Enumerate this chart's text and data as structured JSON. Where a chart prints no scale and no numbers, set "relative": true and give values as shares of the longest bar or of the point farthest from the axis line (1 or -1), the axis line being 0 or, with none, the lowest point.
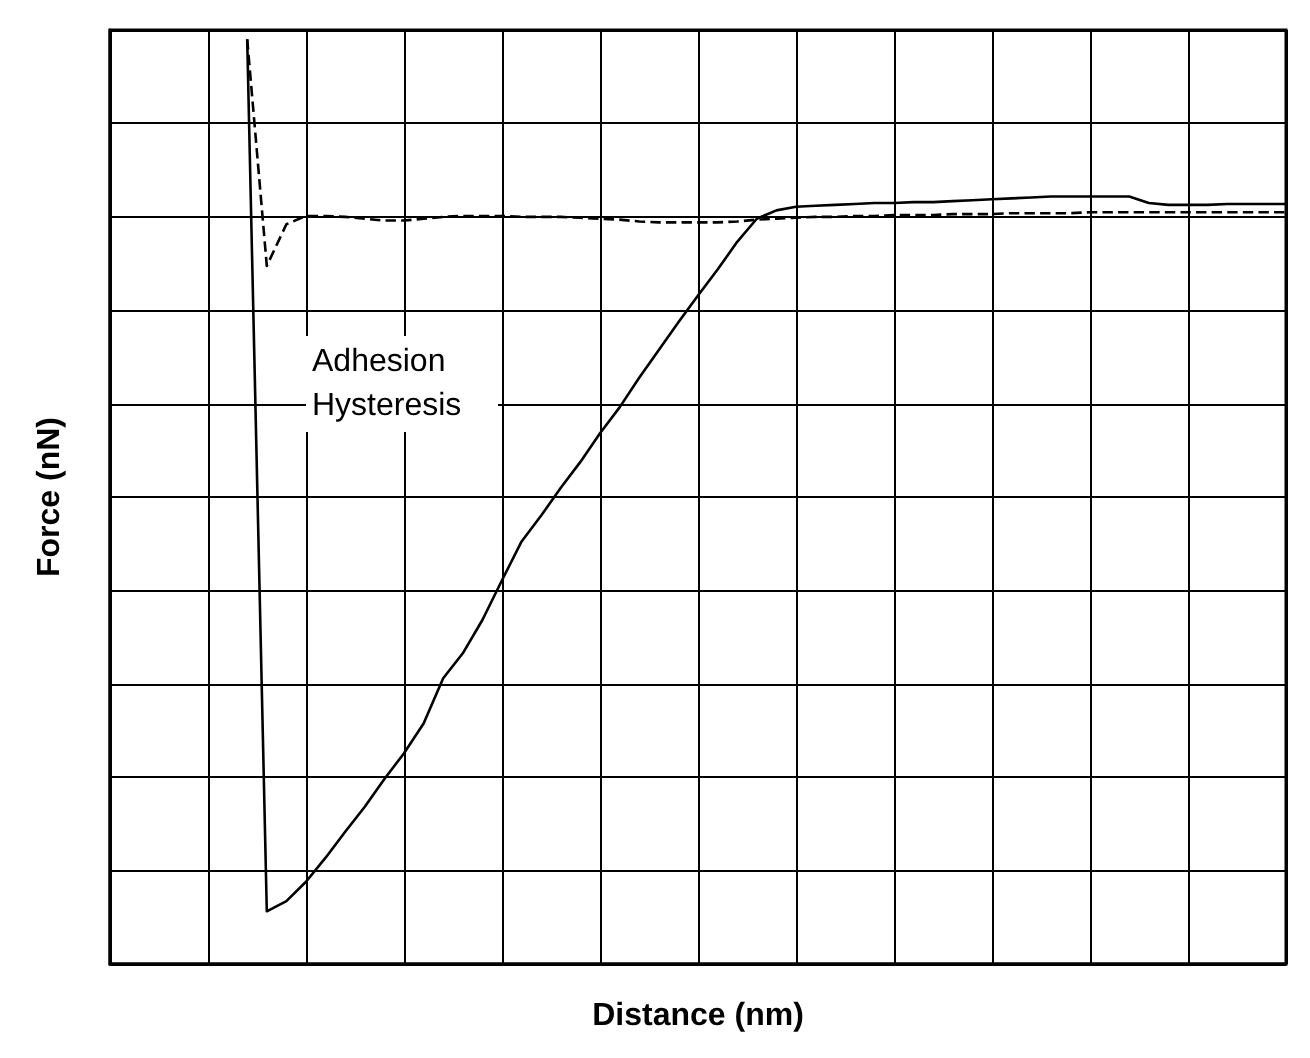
{
  "chart_data": {
    "type": "line",
    "xlabel": "Distance (nm)",
    "ylabel": "Force (nN)",
    "relative": true,
    "grid": true,
    "marker": "none",
    "annotations": [
      "Adhesion Hysteresis"
    ],
    "categories": [
      null,
      null,
      null,
      null,
      null,
      null,
      null,
      null,
      null,
      null,
      null,
      null,
      null,
      null,
      null,
      null,
      null,
      null,
      null,
      null,
      null,
      null,
      null,
      null,
      null,
      null,
      null,
      null,
      null,
      null,
      null,
      null,
      null,
      null,
      null,
      null,
      null,
      null,
      null,
      null,
      null,
      null,
      null,
      null,
      null,
      null,
      null,
      null,
      null,
      null,
      null,
      null,
      null,
      null,
      null,
      null,
      null,
      null,
      null,
      null,
      null
    ],
    "series": [
      {
        "color": "#000000",
        "line_style": "solid",
        "values": [
          null,
          null,
          null,
          null,
          null,
          null,
          null,
          1.0,
          0.057,
          0.068,
          0.089,
          0.115,
          0.143,
          0.17,
          0.2,
          0.228,
          0.26,
          0.309,
          0.336,
          0.372,
          0.415,
          0.457,
          0.485,
          0.515,
          0.543,
          0.574,
          0.602,
          0.634,
          0.664,
          0.694,
          0.723,
          0.751,
          0.781,
          0.806,
          0.815,
          0.819,
          0.82,
          0.821,
          0.822,
          0.823,
          0.823,
          0.824,
          0.824,
          0.825,
          0.826,
          0.827,
          0.828,
          0.829,
          0.83,
          0.83,
          0.83,
          0.83,
          0.83,
          0.823,
          0.821,
          0.821,
          0.821,
          0.822,
          0.822,
          0.822,
          0.822
        ]
      },
      {
        "color": "#000000",
        "line_style": "dashed",
        "values": [
          null,
          null,
          null,
          null,
          null,
          null,
          null,
          1.0,
          0.755,
          0.8,
          0.809,
          0.809,
          0.808,
          0.806,
          0.804,
          0.804,
          0.806,
          0.808,
          0.809,
          0.809,
          0.809,
          0.808,
          0.808,
          0.808,
          0.807,
          0.806,
          0.805,
          0.803,
          0.802,
          0.802,
          0.802,
          0.802,
          0.803,
          0.805,
          0.806,
          0.807,
          0.808,
          0.808,
          0.809,
          0.809,
          0.81,
          0.81,
          0.81,
          0.811,
          0.811,
          0.811,
          0.812,
          0.812,
          0.812,
          0.812,
          0.813,
          0.813,
          0.813,
          0.813,
          0.813,
          0.813,
          0.813,
          0.813,
          0.813,
          0.813,
          0.813
        ]
      }
    ]
  }
}
